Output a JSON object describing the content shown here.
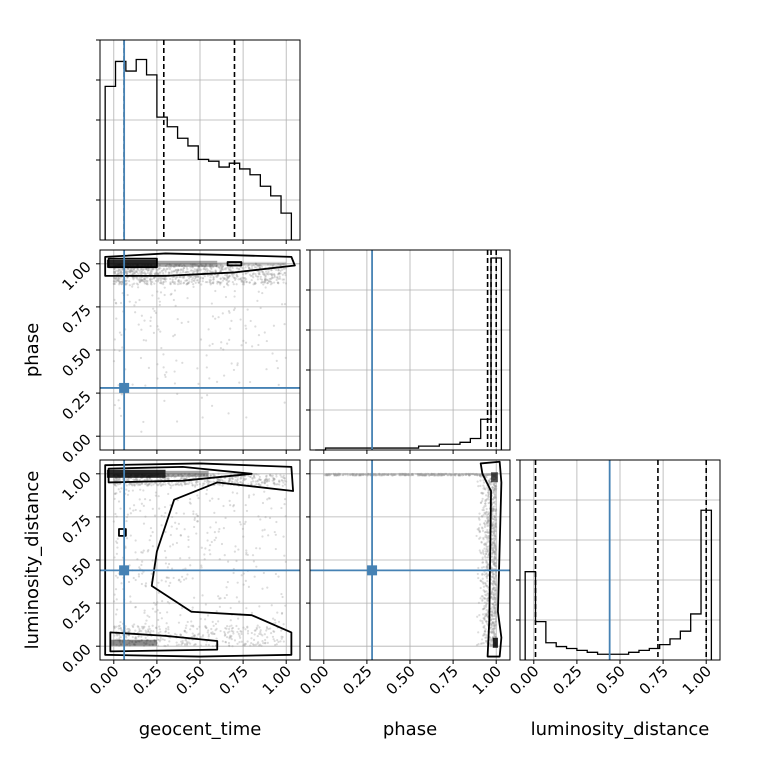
{
  "chart_data": {
    "type": "corner",
    "parameters": [
      "geocent_time",
      "phase",
      "luminosity_distance"
    ],
    "axis_ticks": [
      "0.00",
      "0.25",
      "0.50",
      "0.75",
      "1.00"
    ],
    "axis_range": [
      -0.08,
      1.08
    ],
    "truths": {
      "geocent_time": 0.06,
      "phase": 0.28,
      "luminosity_distance": 0.44
    },
    "colors": {
      "truth": "#4682b4",
      "hist": "#000000",
      "grid": "#b0b0b0",
      "points": "#9a9a9a"
    },
    "histograms": {
      "geocent_time": {
        "bin_edges": [
          -0.05,
          0.01,
          0.07,
          0.13,
          0.19,
          0.25,
          0.31,
          0.37,
          0.43,
          0.49,
          0.55,
          0.61,
          0.67,
          0.73,
          0.79,
          0.85,
          0.91,
          0.97,
          1.03
        ],
        "counts": [
          0.8,
          0.93,
          0.88,
          0.94,
          0.86,
          0.64,
          0.59,
          0.53,
          0.49,
          0.42,
          0.41,
          0.38,
          0.4,
          0.37,
          0.34,
          0.28,
          0.23,
          0.14
        ],
        "quantiles": [
          0.06,
          0.29,
          0.7
        ]
      },
      "phase": {
        "bin_edges": [
          -0.05,
          0.01,
          0.07,
          0.13,
          0.19,
          0.25,
          0.31,
          0.37,
          0.43,
          0.49,
          0.55,
          0.61,
          0.67,
          0.73,
          0.79,
          0.85,
          0.91,
          0.97,
          1.03
        ],
        "counts": [
          0.0,
          0.01,
          0.01,
          0.01,
          0.01,
          0.01,
          0.01,
          0.01,
          0.01,
          0.01,
          0.02,
          0.02,
          0.03,
          0.03,
          0.04,
          0.06,
          0.16,
          1.0
        ],
        "quantiles": [
          0.95,
          0.97,
          1.0
        ]
      },
      "luminosity_distance": {
        "bin_edges": [
          -0.05,
          0.01,
          0.07,
          0.13,
          0.19,
          0.25,
          0.31,
          0.37,
          0.43,
          0.49,
          0.55,
          0.61,
          0.67,
          0.73,
          0.79,
          0.85,
          0.91,
          0.97,
          1.03
        ],
        "counts": [
          0.46,
          0.2,
          0.09,
          0.07,
          0.06,
          0.05,
          0.04,
          0.03,
          0.03,
          0.03,
          0.04,
          0.05,
          0.06,
          0.08,
          0.11,
          0.15,
          0.24,
          0.78
        ],
        "quantiles": [
          0.01,
          0.72,
          1.0
        ]
      }
    },
    "scatter_descriptions": {
      "phase_vs_geocent_time": "phase concentrated near 1.00 across geocent_time range; sparse points below",
      "luminosity_distance_vs_geocent_time": "luminosity_distance bimodal near 0 and 1 across geocent_time",
      "luminosity_distance_vs_phase": "phase near 1.00 for all luminosity_distance; horizontal band at luminosity_distance 1.00"
    }
  }
}
